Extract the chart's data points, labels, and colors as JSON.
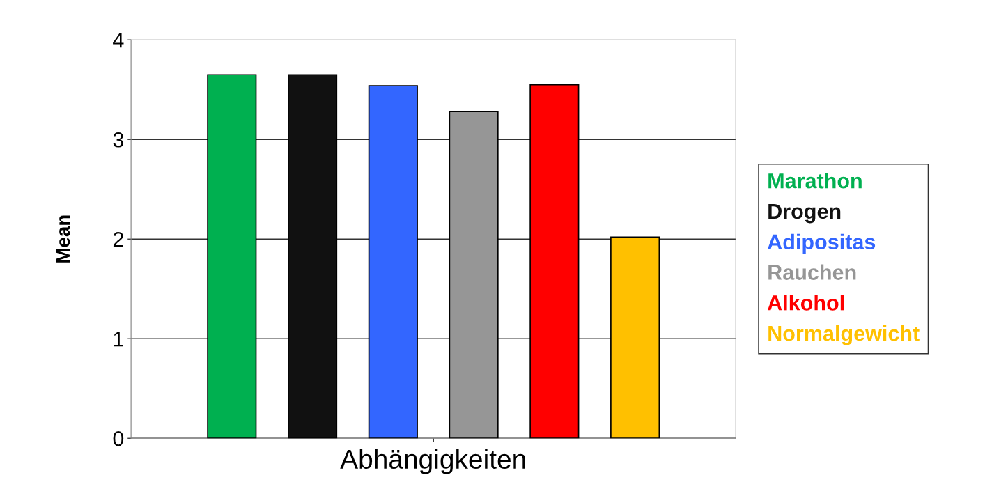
{
  "chart_data": {
    "type": "bar",
    "xlabel": "Abhängigkeiten",
    "ylabel": "Mean",
    "categories": [
      null
    ],
    "series": [
      {
        "name": "Marathon",
        "color": "#00b050",
        "values": [
          3.65
        ]
      },
      {
        "name": "Drogen",
        "color": "#111111",
        "values": [
          3.65
        ]
      },
      {
        "name": "Adipositas",
        "color": "#3366ff",
        "values": [
          3.54
        ]
      },
      {
        "name": "Rauchen",
        "color": "#969696",
        "values": [
          3.28
        ]
      },
      {
        "name": "Alkohol",
        "color": "#ff0000",
        "values": [
          3.55
        ]
      },
      {
        "name": "Normalgewicht",
        "color": "#ffc000",
        "values": [
          2.02
        ]
      }
    ],
    "ylim": [
      0,
      4
    ],
    "yticks": [
      0,
      1,
      2,
      3,
      4
    ],
    "grid": "y",
    "legend": "right"
  }
}
